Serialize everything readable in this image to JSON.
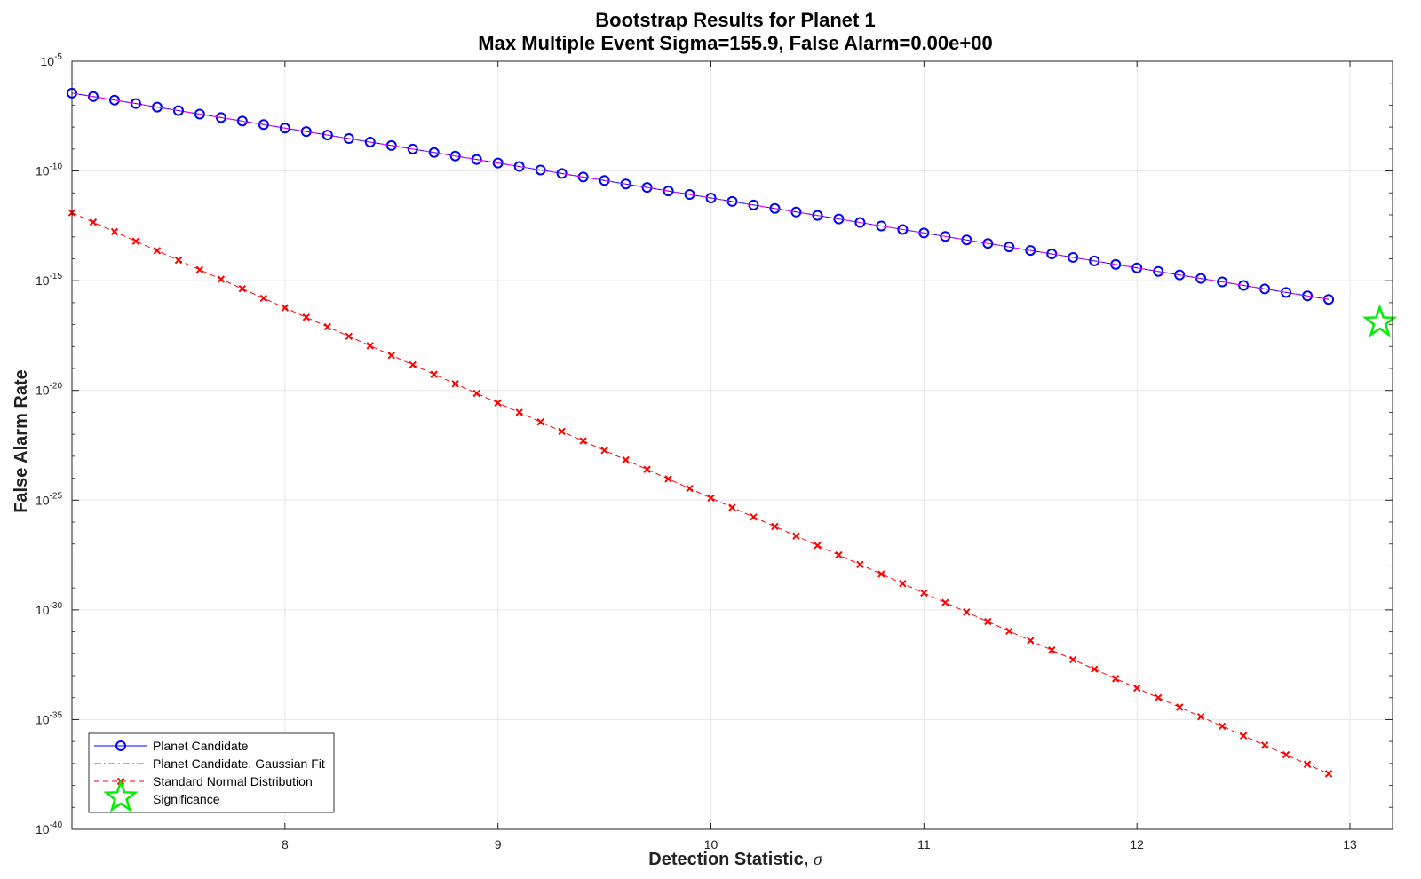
{
  "chart_data": {
    "type": "line",
    "title": "Bootstrap Results for Planet 1",
    "subtitle": "Max Multiple Event Sigma=155.9, False Alarm=0.00e+00",
    "xlabel": "Detection Statistic,",
    "xlabel_symbol": "σ",
    "ylabel": "False Alarm Rate",
    "xlim": [
      7.0,
      13.2
    ],
    "ylim": [
      1e-40,
      1e-05
    ],
    "yscale": "log",
    "grid": true,
    "legend_placement": "bottom-left",
    "x_ticks": [
      {
        "value": 8,
        "label": "8"
      },
      {
        "value": 9,
        "label": "9"
      },
      {
        "value": 10,
        "label": "10"
      },
      {
        "value": 11,
        "label": "11"
      },
      {
        "value": 12,
        "label": "12"
      },
      {
        "value": 13,
        "label": "13"
      }
    ],
    "y_ticks": [
      {
        "exp": -5,
        "base": "10",
        "sup": "-5"
      },
      {
        "exp": -10,
        "base": "10",
        "sup": "-10"
      },
      {
        "exp": -15,
        "base": "10",
        "sup": "-15"
      },
      {
        "exp": -20,
        "base": "10",
        "sup": "-20"
      },
      {
        "exp": -25,
        "base": "10",
        "sup": "-25"
      },
      {
        "exp": -30,
        "base": "10",
        "sup": "-30"
      },
      {
        "exp": -35,
        "base": "10",
        "sup": "-35"
      },
      {
        "exp": -40,
        "base": "10",
        "sup": "-40"
      }
    ],
    "series": [
      {
        "name": "Planet Candidate",
        "color": "#0000ff",
        "marker": "circle",
        "line": "solid",
        "x_start": 7.0,
        "x_end": 12.93,
        "x_step": 0.1,
        "log10_y_start": -6.45,
        "log10_y_end": -15.9
      },
      {
        "name": "Planet Candidate, Gaussian Fit",
        "color": "#ff00ff",
        "marker": "none",
        "line": "dashdot",
        "x_start": 7.0,
        "x_end": 12.93,
        "x_step": 0.1,
        "log10_y_start": -6.45,
        "log10_y_end": -15.9
      },
      {
        "name": "Standard Normal Distribution",
        "color": "#ff0000",
        "marker": "x",
        "line": "dashed",
        "x_start": 7.0,
        "x_end": 12.93,
        "x_step": 0.1,
        "log10_y_start": -11.9,
        "log10_y_end": -37.6
      }
    ],
    "significance": {
      "name": "Significance",
      "color": "#00ee00",
      "marker": "star",
      "x": 13.14,
      "log10_y": -16.9
    }
  }
}
